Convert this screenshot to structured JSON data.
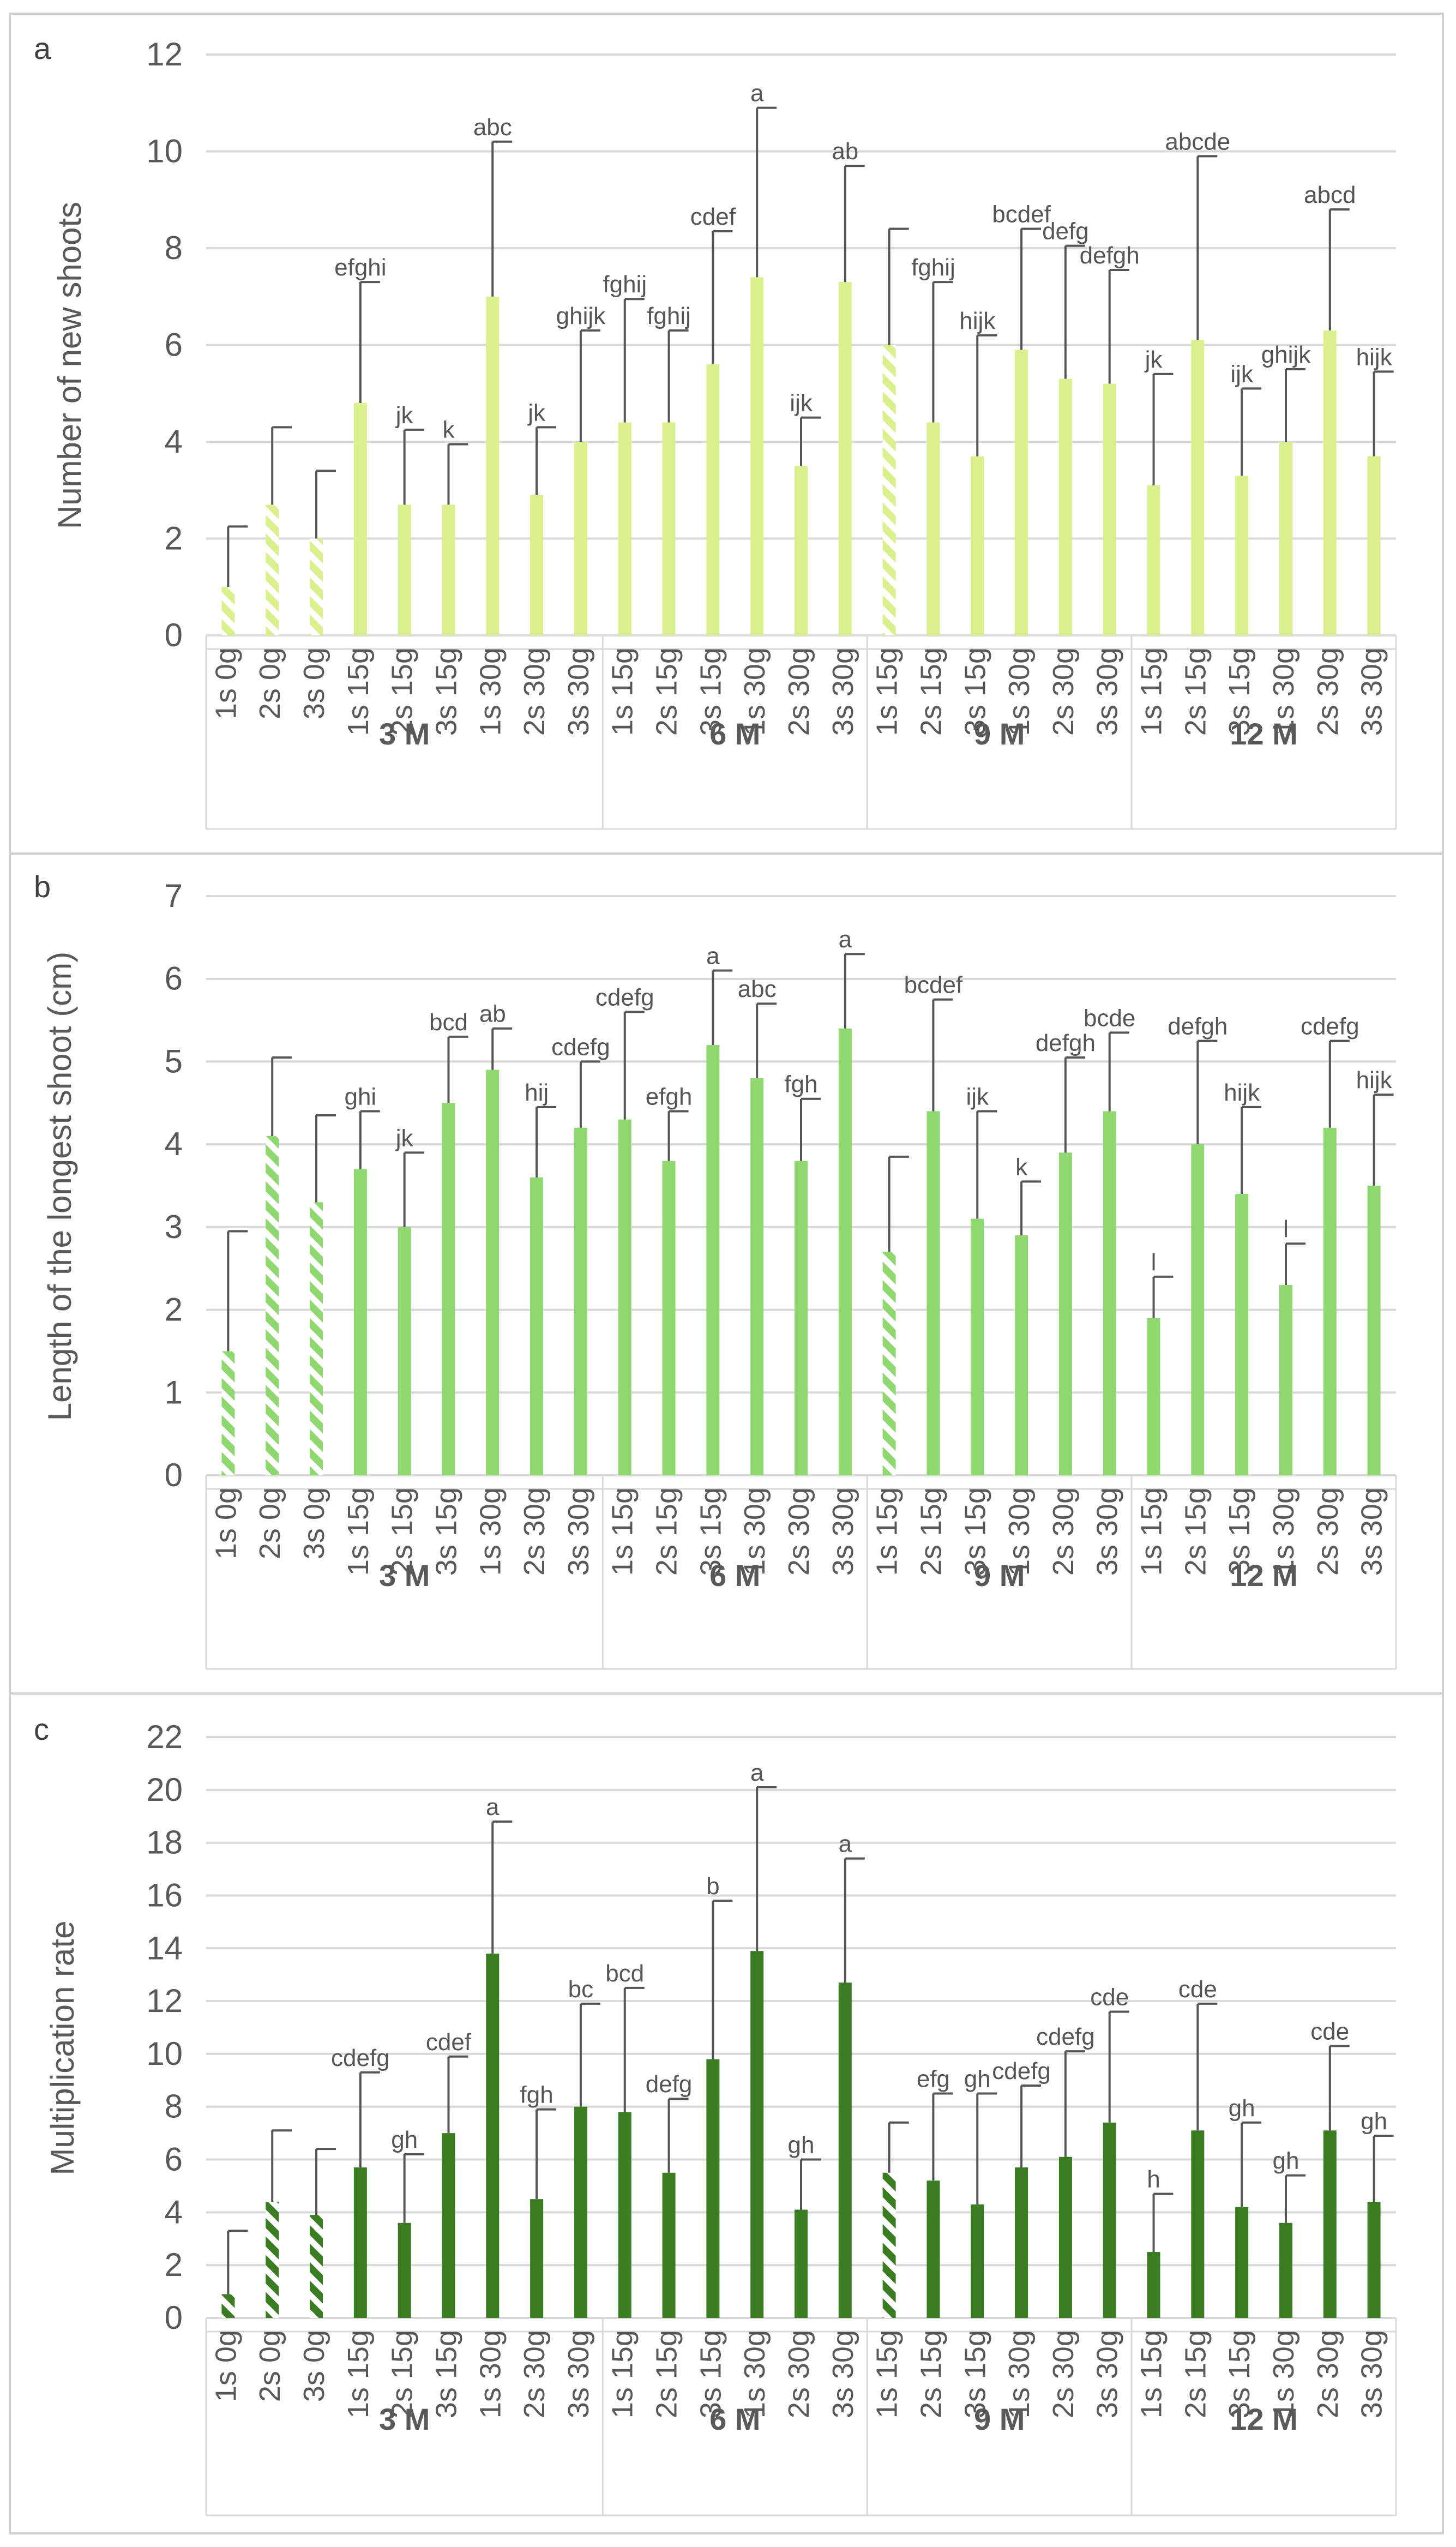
{
  "colors": {
    "panel_a": "#d9f08c",
    "panel_b": "#8fd870",
    "panel_c": "#3a7c22",
    "axis_text": "#595959",
    "letter_text": "#555555",
    "grid": "#d9d9d9",
    "error_bar": "#555555",
    "panel_border": "#d0d0d0"
  },
  "categories": [
    "1s 0g",
    "2s 0g",
    "3s 0g",
    "1s 15g",
    "2s 15g",
    "3s 15g",
    "1s 30g",
    "2s 30g",
    "3s 30g",
    "1s 15g",
    "2s 15g",
    "3s 15g",
    "1s 30g",
    "2s 30g",
    "3s 30g",
    "1s 15g",
    "2s 15g",
    "3s 15g",
    "1s 30g",
    "2s 30g",
    "3s 30g",
    "1s 15g",
    "2s 15g",
    "3s 15g",
    "1s 30g",
    "2s 30g",
    "3s 30g"
  ],
  "hatched": [
    true,
    true,
    true,
    false,
    false,
    false,
    false,
    false,
    false,
    false,
    false,
    false,
    false,
    false,
    false,
    true,
    false,
    false,
    false,
    false,
    false,
    false,
    false,
    false,
    false,
    false,
    false
  ],
  "groups": [
    {
      "label": "3 M",
      "start": 0,
      "end": 8
    },
    {
      "label": "6 M",
      "start": 9,
      "end": 14
    },
    {
      "label": "9 M",
      "start": 15,
      "end": 20
    },
    {
      "label": "12 M",
      "start": 21,
      "end": 26
    }
  ],
  "chart_data": [
    {
      "panel": "a",
      "type": "bar",
      "ylabel": "Number of new shoots",
      "ylim": [
        0,
        12
      ],
      "yticks": [
        0,
        2,
        4,
        6,
        8,
        10,
        12
      ],
      "values": [
        1.0,
        2.7,
        2.0,
        4.8,
        2.7,
        2.7,
        7.0,
        2.9,
        4.0,
        4.4,
        4.4,
        5.6,
        7.4,
        3.5,
        7.3,
        6.0,
        4.4,
        3.7,
        5.9,
        5.3,
        5.2,
        3.1,
        6.1,
        3.3,
        4.0,
        6.3,
        3.7
      ],
      "errors": [
        1.25,
        1.6,
        1.4,
        2.5,
        1.55,
        1.25,
        3.2,
        1.4,
        2.3,
        2.55,
        1.9,
        2.75,
        3.5,
        1.0,
        2.4,
        2.4,
        2.9,
        2.5,
        2.5,
        2.75,
        2.35,
        2.3,
        3.8,
        1.8,
        1.5,
        2.5,
        1.75
      ],
      "letters": [
        "",
        "",
        "",
        "efghi",
        "jk",
        "k",
        "abc",
        "jk",
        "ghijk",
        "fghij",
        "fghij",
        "cdef",
        "a",
        "ijk",
        "ab",
        "",
        "fghij",
        "hijk",
        "bcdef",
        "defg",
        "defgh",
        "jk",
        "abcde",
        "ijk",
        "ghijk",
        "abcd",
        "hijk"
      ]
    },
    {
      "panel": "b",
      "type": "bar",
      "ylabel": "Length of the longest shoot (cm)",
      "ylim": [
        0,
        7
      ],
      "yticks": [
        0,
        1,
        2,
        3,
        4,
        5,
        6,
        7
      ],
      "values": [
        1.5,
        4.1,
        3.3,
        3.7,
        3.0,
        4.5,
        4.9,
        3.6,
        4.2,
        4.3,
        3.8,
        5.2,
        4.8,
        3.8,
        5.4,
        2.7,
        4.4,
        3.1,
        2.9,
        3.9,
        4.4,
        1.9,
        4.0,
        3.4,
        2.3,
        4.2,
        3.5
      ],
      "errors": [
        1.45,
        0.95,
        1.05,
        0.7,
        0.9,
        0.8,
        0.5,
        0.85,
        0.8,
        1.3,
        0.6,
        0.9,
        0.9,
        0.75,
        0.9,
        1.15,
        1.35,
        1.3,
        0.65,
        1.15,
        0.95,
        0.5,
        1.25,
        1.05,
        0.5,
        1.05,
        1.1
      ],
      "letters": [
        "",
        "",
        "",
        "ghi",
        "jk",
        "bcd",
        "ab",
        "hij",
        "cdefg",
        "cdefg",
        "efgh",
        "a",
        "abc",
        "fgh",
        "a",
        "",
        "bcdef",
        "ijk",
        "k",
        "defgh",
        "bcde",
        "l",
        "defgh",
        "hijk",
        "l",
        "cdefg",
        "hijk"
      ]
    },
    {
      "panel": "c",
      "type": "bar",
      "ylabel": "Multiplication rate",
      "ylim": [
        0,
        22
      ],
      "yticks": [
        0,
        2,
        4,
        6,
        8,
        10,
        12,
        14,
        16,
        18,
        20,
        22
      ],
      "values": [
        0.9,
        4.4,
        3.9,
        5.7,
        3.6,
        7.0,
        13.8,
        4.5,
        8.0,
        7.8,
        5.5,
        9.8,
        13.9,
        4.1,
        12.7,
        5.5,
        5.2,
        4.3,
        5.7,
        6.1,
        7.4,
        2.5,
        7.1,
        4.2,
        3.6,
        7.1,
        4.4
      ],
      "errors": [
        2.4,
        2.7,
        2.5,
        3.6,
        2.6,
        2.9,
        5.0,
        3.4,
        3.9,
        4.7,
        2.8,
        6.0,
        6.2,
        1.9,
        4.7,
        1.9,
        3.3,
        4.2,
        3.1,
        4.0,
        4.2,
        2.2,
        4.8,
        3.2,
        1.8,
        3.2,
        2.5
      ],
      "letters": [
        "",
        "",
        "",
        "cdefg",
        "gh",
        "cdef",
        "a",
        "fgh",
        "bc",
        "bcd",
        "defg",
        "b",
        "a",
        "gh",
        "a",
        "",
        "efg",
        "gh",
        "cdefg",
        "cdefg",
        "cde",
        "h",
        "cde",
        "gh",
        "gh",
        "cde",
        "gh"
      ]
    }
  ],
  "panels": [
    {
      "label": "a"
    },
    {
      "label": "b"
    },
    {
      "label": "c"
    }
  ]
}
